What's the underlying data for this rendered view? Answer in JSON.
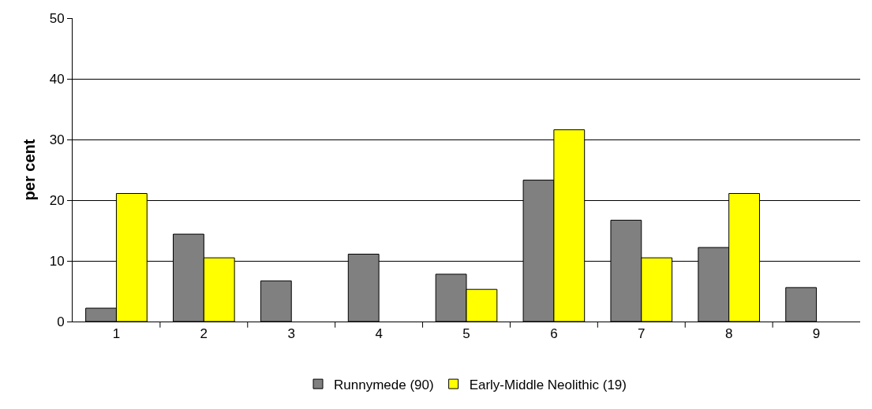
{
  "chart_data": {
    "type": "bar",
    "ylabel": "per cent",
    "categories": [
      "1",
      "2",
      "3",
      "4",
      "5",
      "6",
      "7",
      "8",
      "9"
    ],
    "series": [
      {
        "name": "Runnymede (90)",
        "color": "#808080",
        "values": [
          2.2,
          14.4,
          6.7,
          11.1,
          7.8,
          23.3,
          16.7,
          12.2,
          5.6
        ]
      },
      {
        "name": "Early-Middle Neolithic (19)",
        "color": "#ffff00",
        "values": [
          21.1,
          10.5,
          0,
          0,
          5.3,
          31.6,
          10.5,
          21.1,
          0
        ]
      }
    ],
    "ylim": [
      0,
      50
    ],
    "yticks": [
      0,
      10,
      20,
      30,
      40,
      50
    ],
    "grid": "y",
    "legend": "bottom"
  }
}
